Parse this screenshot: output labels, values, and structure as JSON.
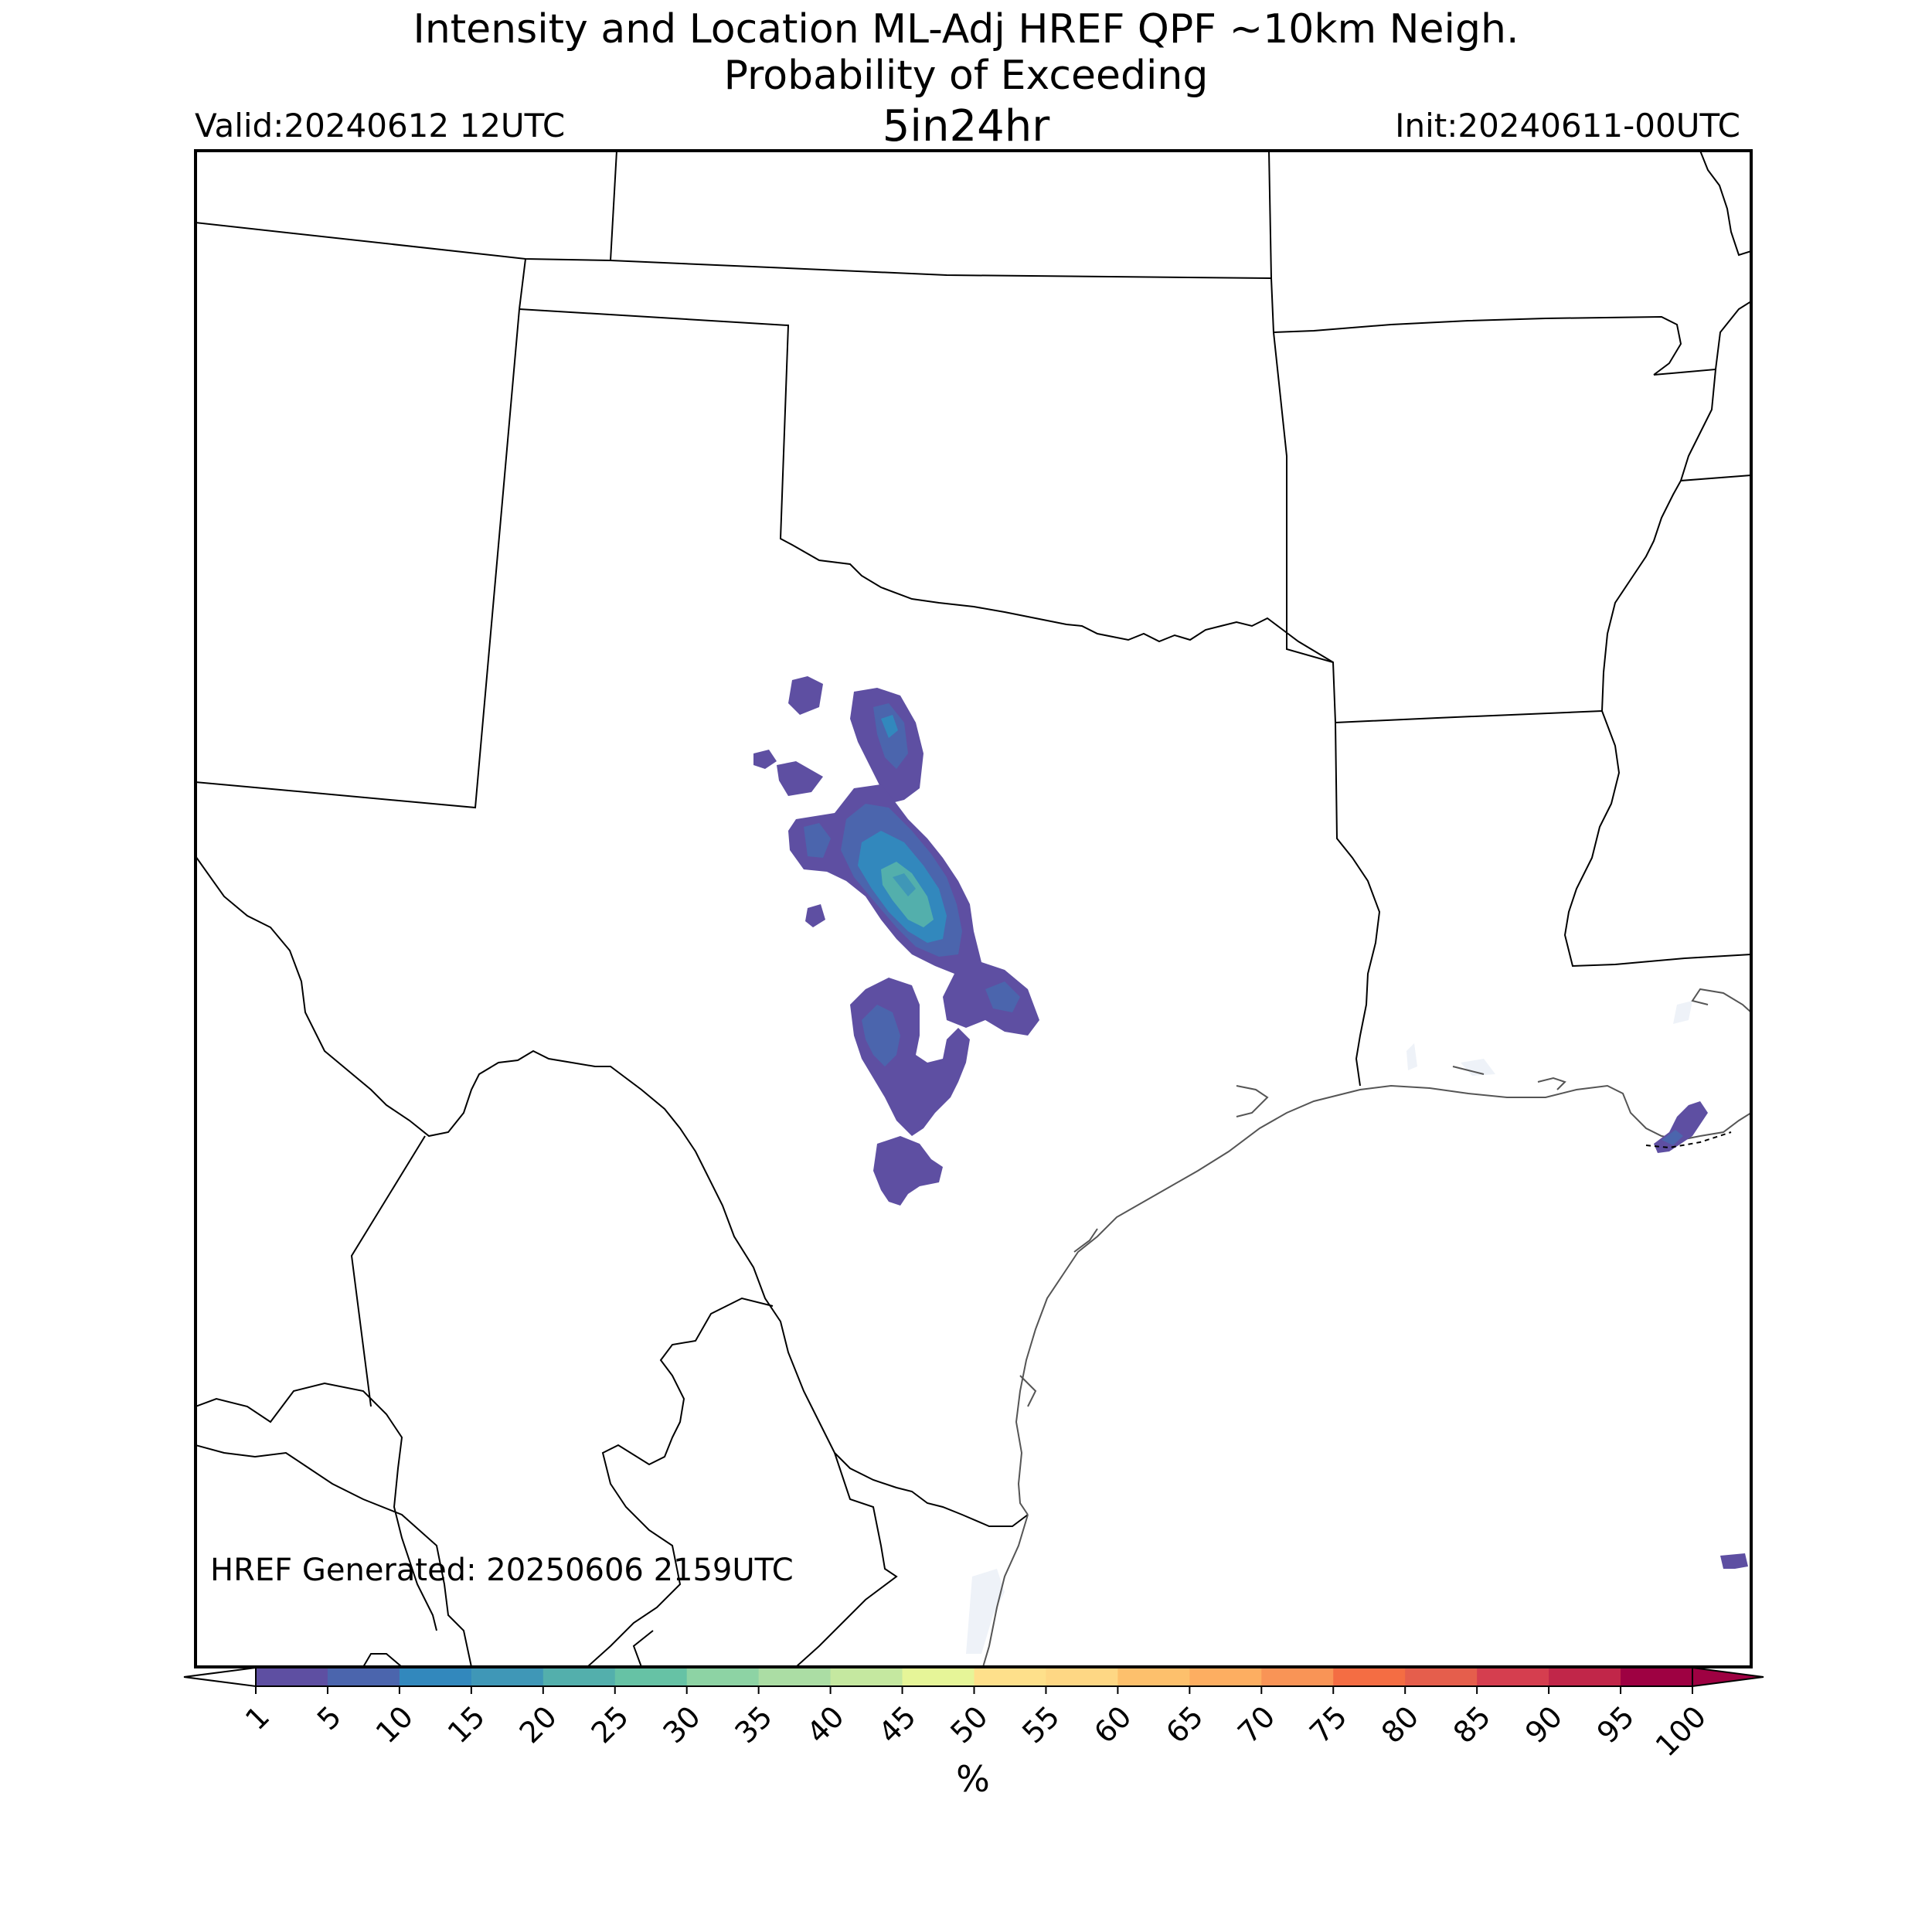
{
  "header": {
    "title_line1": "Intensity and Location ML-Adj HREF QPF ~10km Neigh.",
    "title_line2": "Probability of Exceeding",
    "threshold": "5in24hr",
    "valid": "Valid:20240612 12UTC",
    "init": "Init:20240611-00UTC"
  },
  "map": {
    "generated_label": "HREF Generated: 20250606 2159UTC",
    "region": "Texas / Southern Plains / Northern Mexico"
  },
  "colorbar": {
    "unit_label": "%",
    "ticks": [
      "1",
      "5",
      "10",
      "15",
      "20",
      "25",
      "30",
      "35",
      "40",
      "45",
      "50",
      "55",
      "60",
      "65",
      "70",
      "75",
      "80",
      "85",
      "90",
      "95",
      "100"
    ],
    "colors": [
      "#5e4fa2",
      "#4b65ad",
      "#3288bd",
      "#3f97b7",
      "#53afac",
      "#66c2a5",
      "#8dd3a4",
      "#abdda4",
      "#c5e8a0",
      "#e6f598",
      "#fee08b",
      "#fed784",
      "#fdc06c",
      "#fdae61",
      "#f99456",
      "#f46d43",
      "#e55e4c",
      "#d53e4f",
      "#c12649",
      "#9e0142"
    ],
    "under_color": "#ffffff",
    "over_color": "#9e0142"
  }
}
